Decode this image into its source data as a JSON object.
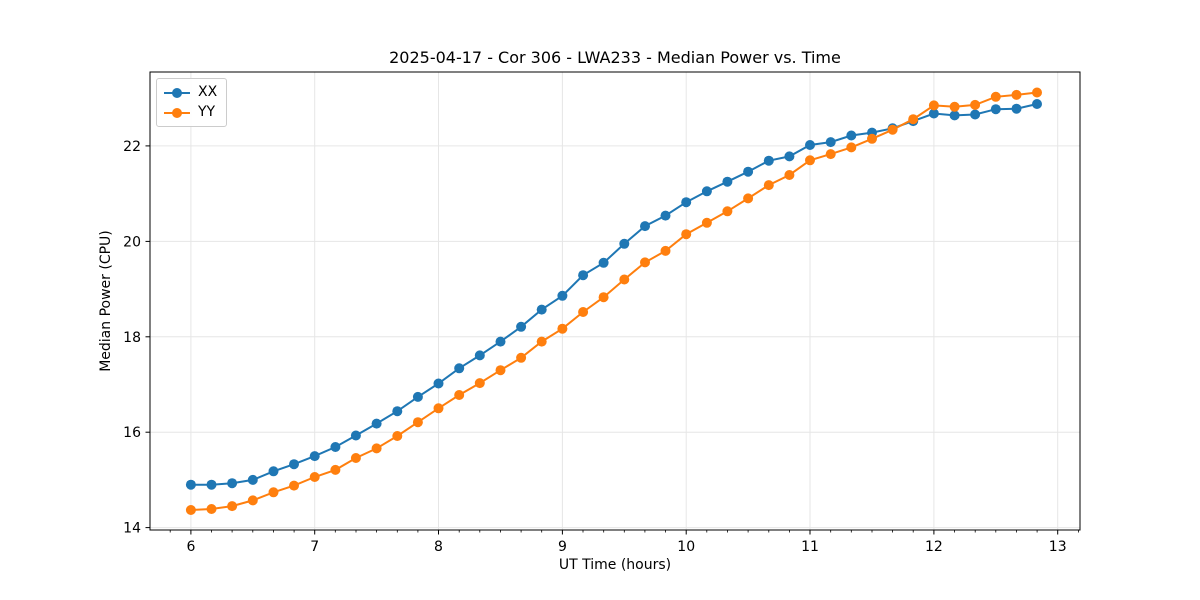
{
  "chart_data": {
    "type": "line",
    "title": "2025-04-17 - Cor 306 - LWA233 - Median Power vs. Time",
    "xlabel": "UT Time (hours)",
    "ylabel": "Median Power (CPU)",
    "xlim": [
      5.67,
      13.18
    ],
    "ylim": [
      13.95,
      23.55
    ],
    "xticks": [
      6,
      7,
      8,
      9,
      10,
      11,
      12,
      13
    ],
    "yticks": [
      14,
      16,
      18,
      20,
      22
    ],
    "x_minor_step": 0.166667,
    "grid": true,
    "legend_position": "upper-left",
    "marker": "circle",
    "colors": {
      "grid": "#e6e6e6",
      "spine": "#000000",
      "text": "#000000",
      "background": "#ffffff"
    },
    "x": [
      6.0,
      6.167,
      6.333,
      6.5,
      6.667,
      6.833,
      7.0,
      7.167,
      7.333,
      7.5,
      7.667,
      7.833,
      8.0,
      8.167,
      8.333,
      8.5,
      8.667,
      8.833,
      9.0,
      9.167,
      9.333,
      9.5,
      9.667,
      9.833,
      10.0,
      10.167,
      10.333,
      10.5,
      10.667,
      10.833,
      11.0,
      11.167,
      11.333,
      11.5,
      11.667,
      11.833,
      12.0,
      12.167,
      12.333,
      12.5,
      12.667,
      12.833
    ],
    "series": [
      {
        "name": "XX",
        "color": "#1f77b4",
        "values": [
          14.9,
          14.9,
          14.93,
          15.0,
          15.18,
          15.33,
          15.5,
          15.69,
          15.93,
          16.18,
          16.44,
          16.74,
          17.02,
          17.34,
          17.61,
          17.9,
          18.21,
          18.57,
          18.86,
          19.29,
          19.55,
          19.95,
          20.32,
          20.54,
          20.82,
          21.05,
          21.25,
          21.46,
          21.69,
          21.78,
          22.02,
          22.08,
          22.22,
          22.28,
          22.37,
          22.52,
          22.68,
          22.64,
          22.66,
          22.77,
          22.78,
          22.88
        ]
      },
      {
        "name": "YY",
        "color": "#ff7f0e",
        "values": [
          14.37,
          14.39,
          14.45,
          14.57,
          14.74,
          14.88,
          15.06,
          15.21,
          15.46,
          15.66,
          15.92,
          16.21,
          16.5,
          16.78,
          17.03,
          17.3,
          17.56,
          17.9,
          18.17,
          18.52,
          18.83,
          19.2,
          19.56,
          19.8,
          20.15,
          20.39,
          20.63,
          20.9,
          21.18,
          21.39,
          21.7,
          21.83,
          21.97,
          22.15,
          22.34,
          22.56,
          22.85,
          22.82,
          22.86,
          23.03,
          23.07,
          23.12
        ]
      }
    ]
  }
}
